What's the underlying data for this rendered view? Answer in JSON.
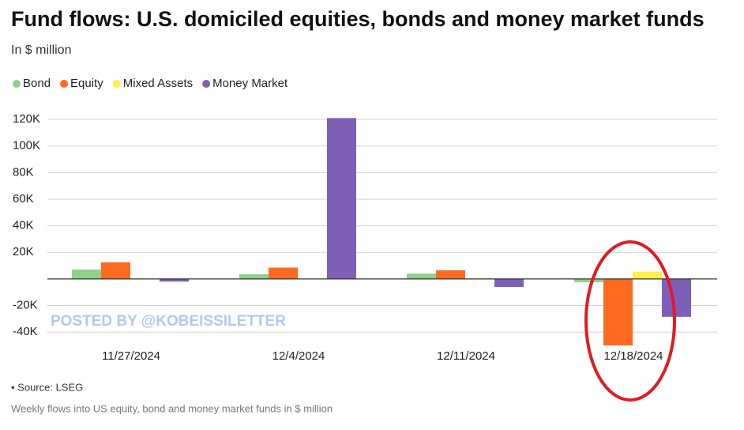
{
  "chart_data": {
    "type": "bar",
    "title": "Fund flows: U.S. domiciled equities, bonds and money market funds",
    "subtitle": "In $ million",
    "categories": [
      "11/27/2024",
      "12/4/2024",
      "12/11/2024",
      "12/18/2024"
    ],
    "series": [
      {
        "name": "Bond",
        "color": "#8fd18a",
        "values": [
          7000,
          3500,
          4000,
          -2500
        ]
      },
      {
        "name": "Equity",
        "color": "#ff6a21",
        "values": [
          12500,
          8500,
          6500,
          -50000
        ]
      },
      {
        "name": "Mixed Assets",
        "color": "#fff04a",
        "values": [
          0,
          0,
          -500,
          5500
        ]
      },
      {
        "name": "Money Market",
        "color": "#7e5fb8",
        "values": [
          -2000,
          121000,
          -6000,
          -28500
        ]
      }
    ],
    "ylim": [
      -50000,
      120000
    ],
    "yticks": [
      {
        "value": -40000,
        "label": "-40K"
      },
      {
        "value": -20000,
        "label": "-20K"
      },
      {
        "value": 20000,
        "label": "20K"
      },
      {
        "value": 40000,
        "label": "40K"
      },
      {
        "value": 60000,
        "label": "60K"
      },
      {
        "value": 80000,
        "label": "80K"
      },
      {
        "value": 100000,
        "label": "100K"
      },
      {
        "value": 120000,
        "label": "120K"
      }
    ],
    "grid": true,
    "watermark": "POSTED BY @KOBEISSILETTER",
    "source": "• Source: LSEG",
    "note": "Weekly flows into US equity, bond and money market funds in $ million"
  }
}
